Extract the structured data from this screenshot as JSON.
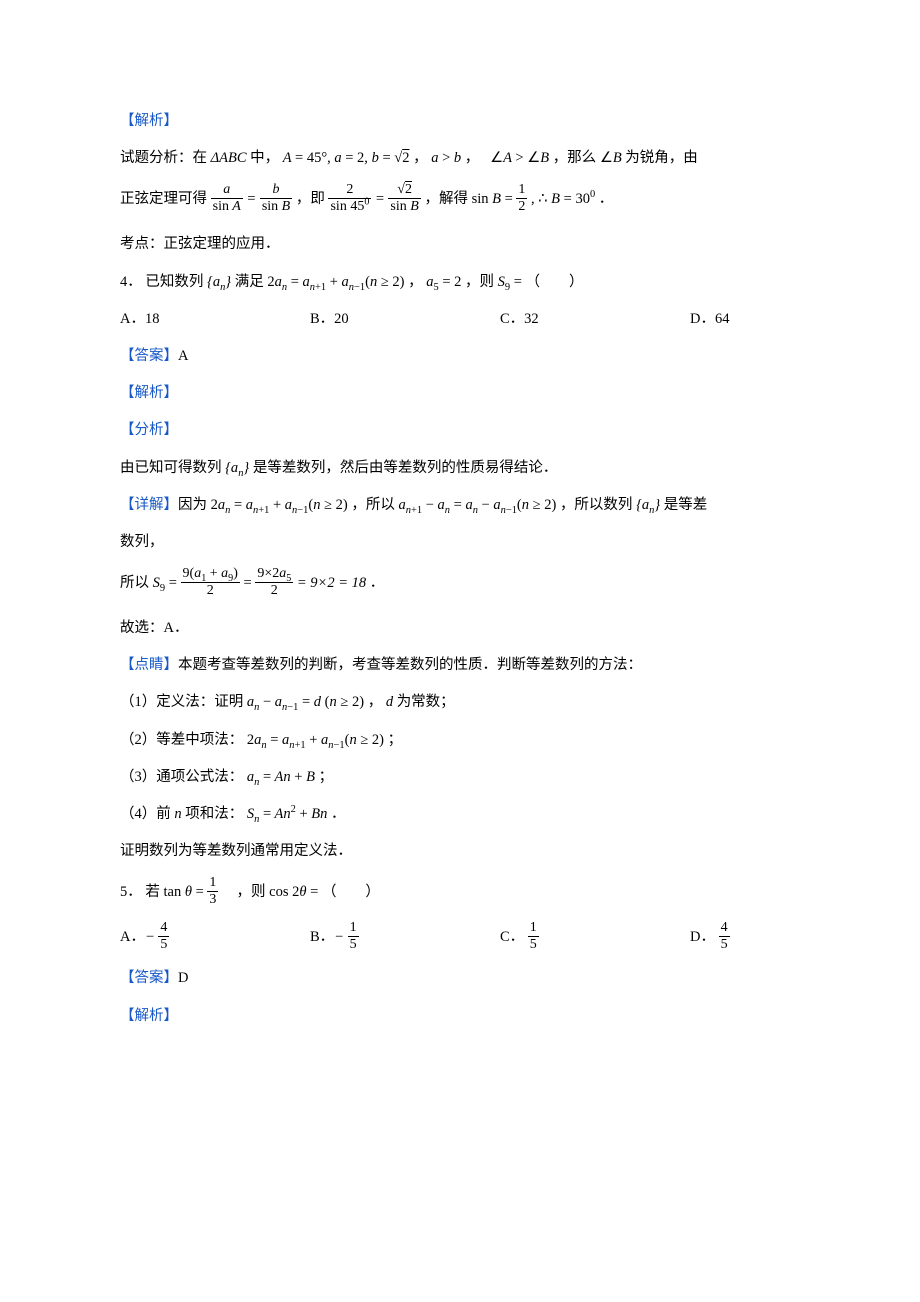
{
  "labels": {
    "jiexi": "【解析】",
    "daan": "【答案】",
    "fenxi": "【分析】",
    "xiangjie": "【详解】",
    "dianjing": "【点睛】",
    "kaodian_prefix": "考点："
  },
  "q3": {
    "analysis_open": "试题分析：在",
    "triangle": "ΔABC",
    "mid1": "中，",
    "cond1": "A = 45°, a = 2, b = √2",
    "cond2": "a > b",
    "mid2": "，",
    "ineq": "∠A > ∠B",
    "mid3": "，那么",
    "angleB": "∠B",
    "mid4": "为锐角，由",
    "line2_a": "正弦定理可得",
    "eq1_lhs1_num": "a",
    "eq1_lhs1_den": "sin A",
    "eq1_lhs2_num": "b",
    "eq1_lhs2_den": "sin B",
    "mid5": "，即",
    "eq2_lhs_num": "2",
    "eq2_lhs_den": "sin 45⁰",
    "eq2_rhs_num": "√2",
    "eq2_rhs_den": "sin B",
    "mid6": "，解得",
    "sinB_lhs": "sin B",
    "sinB_rhs_num": "1",
    "sinB_rhs_den": "2",
    "therefore": "∴ B = 30⁰",
    "period": "．",
    "kaodian": "正弦定理的应用．"
  },
  "q4": {
    "num": "4．",
    "stem_a": "已知数列",
    "seq": "{aₙ}",
    "stem_b": "满足",
    "eq": "2aₙ = aₙ₊₁ + aₙ₋₁ (n ≥ 2)",
    "stem_c": "，",
    "a5": "a₅ = 2",
    "stem_d": "，则",
    "S9": "S₉ =",
    "stem_e": "（　　）",
    "opts": {
      "A": "A．18",
      "B": "B．20",
      "C": "C．32",
      "D": "D．64"
    },
    "answer": "A",
    "fenxi_text_a": "由已知可得数列",
    "fenxi_text_b": "是等差数列，然后由等差数列的性质易得结论．",
    "xiangjie_a": "因为",
    "xiangjie_eq1": "2aₙ = aₙ₊₁ + aₙ₋₁ (n ≥ 2)",
    "xiangjie_b": "，所以",
    "xiangjie_eq2": "aₙ₊₁ − aₙ = aₙ − aₙ₋₁ (n ≥ 2)",
    "xiangjie_c": "，所以数列",
    "xiangjie_d": "是等差",
    "xiangjie_e": "数列，",
    "suoyi": "所以",
    "S9_eq_a_num": "9(a₁ + a₉)",
    "S9_eq_a_den": "2",
    "S9_eq_b_num": "9×2a₅",
    "S9_eq_b_den": "2",
    "S9_eq_c": "= 9×2 = 18",
    "period": "．",
    "guxuan": "故选：A．",
    "dianjing_text": "本题考查等差数列的判断，考查等差数列的性质．判断等差数列的方法：",
    "m1_a": "（1）定义法：证明",
    "m1_eq": "aₙ − aₙ₋₁ = d  (n ≥ 2)",
    "m1_b": "，",
    "m1_c": "为常数；",
    "m2_a": "（2）等差中项法：",
    "m2_eq": "2aₙ = aₙ₊₁ + aₙ₋₁ (n ≥ 2)",
    "m2_b": "；",
    "m3_a": "（3）通项公式法：",
    "m3_eq": "aₙ = An + B",
    "m3_b": "；",
    "m4_a": "（4）前",
    "m4_n": "n",
    "m4_b": "项和法：",
    "m4_eq": "Sₙ = An² + Bn",
    "m4_c": "．",
    "closing": "证明数列为等差数列通常用定义法．"
  },
  "q5": {
    "num": "5．",
    "stem_a": "若",
    "tan_lhs": "tan θ",
    "tan_rhs_num": "1",
    "tan_rhs_den": "3",
    "stem_b": "，则",
    "cos": "cos 2θ =",
    "stem_c": "（　　）",
    "opts": {
      "A": {
        "label": "A．",
        "sign": "−",
        "num": "4",
        "den": "5"
      },
      "B": {
        "label": "B．",
        "sign": "−",
        "num": "1",
        "den": "5"
      },
      "C": {
        "label": "C．",
        "sign": "",
        "num": "1",
        "den": "5"
      },
      "D": {
        "label": "D．",
        "sign": "",
        "num": "4",
        "den": "5"
      }
    },
    "answer": "D"
  },
  "colors": {
    "blue": "#1859c8",
    "text": "#000000",
    "bg": "#ffffff"
  }
}
